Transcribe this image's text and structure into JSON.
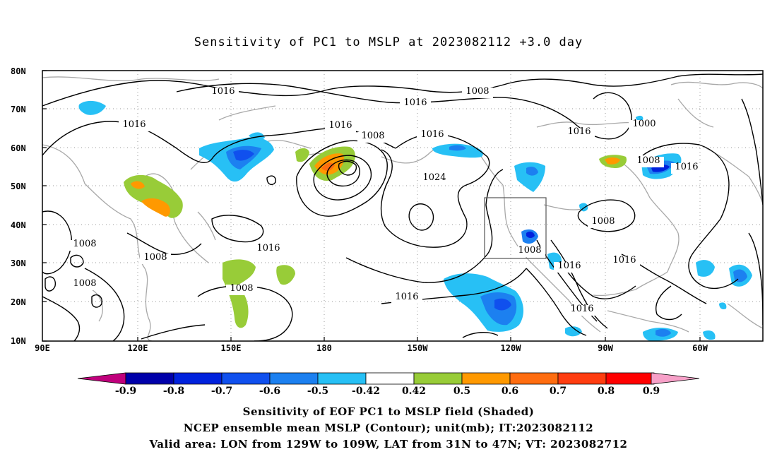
{
  "title": "Sensitivity of PC1 to MSLP at 2023082112 +3.0 day",
  "lat_labels": [
    "80N",
    "70N",
    "60N",
    "50N",
    "40N",
    "30N",
    "20N",
    "10N"
  ],
  "lon_labels": [
    "90E",
    "120E",
    "150E",
    "180",
    "150W",
    "120W",
    "90W",
    "60W"
  ],
  "contour_labels": [
    "1016",
    "1008",
    "1016",
    "1016",
    "1008",
    "1016",
    "1000",
    "1008",
    "1016",
    "1016",
    "1024",
    "1016",
    "1008",
    "1008",
    "1008",
    "1016",
    "1016",
    "1008",
    "1016",
    "1016",
    "1008",
    "1016",
    "1008"
  ],
  "colorbar": {
    "labels": [
      "-0.9",
      "-0.8",
      "-0.7",
      "-0.6",
      "-0.5",
      "-0.42",
      "0.42",
      "0.5",
      "0.6",
      "0.7",
      "0.8",
      "0.9"
    ],
    "colors": [
      "#c0007c",
      "#0000aa",
      "#0022dd",
      "#1050ee",
      "#1c80f0",
      "#27c0f5",
      "#ffffff",
      "#98cc38",
      "#ff9900",
      "#ff6d10",
      "#ff3d10",
      "#ff0000",
      "#f7a0c8"
    ]
  },
  "footer": {
    "line1": "Sensitivity of EOF PC1 to MSLP field (Shaded)",
    "line2": "NCEP ensemble mean MSLP (Contour); unit(mb); IT:2023082112",
    "line3": "Valid area: LON from 129W to 109W, LAT from 31N to 47N; VT: 2023082712"
  },
  "map": {
    "lon_range": [
      "90E",
      "45W"
    ],
    "lat_range": [
      "10N",
      "80N"
    ],
    "valid_box": {
      "lon": [
        "129W",
        "109W"
      ],
      "lat": [
        "31N",
        "47N"
      ]
    }
  }
}
